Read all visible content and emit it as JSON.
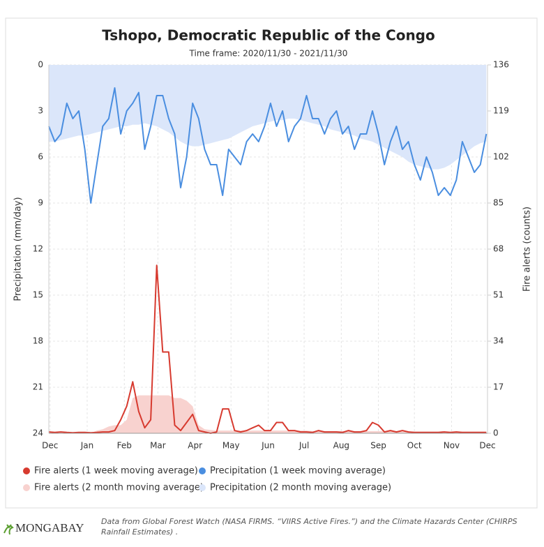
{
  "chart_data": {
    "type": "line",
    "title": "Tshopo, Democratic Republic of the Congo",
    "subtitle": "Time frame: 2020/11/30 - 2021/11/30",
    "y_label": "Precipitation (mm/day)",
    "y2_label": "Fire alerts (counts)",
    "x": [
      0,
      5,
      10,
      15,
      20,
      25,
      30,
      35,
      40,
      45,
      50,
      55,
      60,
      65,
      70,
      75,
      80,
      85,
      90,
      95,
      100,
      105,
      110,
      115,
      120,
      125,
      130,
      135,
      140,
      145,
      150,
      155,
      160,
      165,
      170,
      175,
      180,
      185,
      190,
      195,
      200,
      205,
      210,
      215,
      220,
      225,
      230,
      235,
      240,
      245,
      250,
      255,
      260,
      265,
      270,
      275,
      280,
      285,
      290,
      295,
      300,
      305,
      310,
      315,
      320,
      325,
      330,
      335,
      340,
      345,
      350,
      355,
      360,
      365
    ],
    "xlim": [
      0,
      366
    ],
    "xticks": [
      {
        "value": 1,
        "label": "Dec"
      },
      {
        "value": 32,
        "label": "Jan"
      },
      {
        "value": 63,
        "label": "Feb"
      },
      {
        "value": 91,
        "label": "Mar"
      },
      {
        "value": 122,
        "label": "Apr"
      },
      {
        "value": 152,
        "label": "May"
      },
      {
        "value": 183,
        "label": "Jun"
      },
      {
        "value": 213,
        "label": "Jul"
      },
      {
        "value": 244,
        "label": "Aug"
      },
      {
        "value": 275,
        "label": "Sep"
      },
      {
        "value": 305,
        "label": "Oct"
      },
      {
        "value": 336,
        "label": "Nov"
      },
      {
        "value": 366,
        "label": "Dec"
      }
    ],
    "ylim": [
      0,
      24
    ],
    "y_reversed": true,
    "yticks": [
      0,
      3,
      6,
      9,
      12,
      15,
      18,
      21,
      24
    ],
    "y2lim": [
      0,
      136
    ],
    "y2ticks": [
      0,
      17,
      34,
      51,
      68,
      85,
      102,
      119,
      136
    ],
    "grid": true,
    "series": [
      {
        "name": "Fire alerts (1 week moving average)",
        "color": "#d73a2f",
        "axis": "y2",
        "fill": false,
        "values": [
          0.5,
          0.3,
          0.5,
          0.3,
          0.2,
          0.3,
          0.3,
          0.2,
          0.3,
          0.5,
          0.5,
          1,
          5,
          10,
          19,
          8,
          2,
          5,
          62,
          30,
          30,
          3,
          1,
          4,
          7,
          1,
          0.5,
          0,
          0.5,
          9,
          9,
          1,
          0.5,
          1,
          2,
          3,
          1,
          1,
          4,
          4,
          1,
          1,
          0.5,
          0.5,
          0.3,
          1,
          0.5,
          0.5,
          0.5,
          0.3,
          1,
          0.5,
          0.5,
          1,
          4,
          3,
          0.5,
          1,
          0.5,
          1,
          0.5,
          0.3,
          0.3,
          0.3,
          0.3,
          0.3,
          0.5,
          0.3,
          0.5,
          0.3,
          0.3,
          0.3,
          0.3,
          0.3
        ]
      },
      {
        "name": "Precipitation (1 week moving average)",
        "color": "#4a8ee0",
        "fill": false,
        "values": [
          4.0,
          5.0,
          4.5,
          2.5,
          3.5,
          3.0,
          5.5,
          9.0,
          6.5,
          4.0,
          3.5,
          1.5,
          4.5,
          3.0,
          2.5,
          1.8,
          5.5,
          4.0,
          2.0,
          2.0,
          3.5,
          4.5,
          8.0,
          6.0,
          2.5,
          3.5,
          5.5,
          6.5,
          6.5,
          8.5,
          5.5,
          6.0,
          6.5,
          5.0,
          4.5,
          5.0,
          4.0,
          2.5,
          4.0,
          3.0,
          5.0,
          4.0,
          3.5,
          2.0,
          3.5,
          3.5,
          4.5,
          3.5,
          3.0,
          4.5,
          4.0,
          5.5,
          4.5,
          4.5,
          3.0,
          4.5,
          6.5,
          5.0,
          4.0,
          5.5,
          5.0,
          6.5,
          7.5,
          6.0,
          7.0,
          8.5,
          8.0,
          8.5,
          7.5,
          5.0,
          6.0,
          7.0,
          6.5,
          4.5
        ]
      },
      {
        "name": "Fire alerts (2 month moving average)",
        "color": "#f8d2cf",
        "axis": "y2",
        "fill": true,
        "values": [
          0,
          0,
          0,
          0,
          0,
          0,
          0,
          0,
          1,
          1.5,
          2.5,
          3,
          3,
          5,
          13,
          14,
          14,
          14,
          14,
          14,
          14,
          13,
          13,
          12,
          10,
          3,
          1.5,
          1.2,
          1,
          1,
          1,
          1,
          1,
          1,
          1,
          1,
          1,
          1,
          1,
          1,
          1,
          1,
          1,
          1,
          0.8,
          0.8,
          0.8,
          0.8,
          0.8,
          0.8,
          0.8,
          0.8,
          0.8,
          0.8,
          0.8,
          0.8,
          0.8,
          0.8,
          0.6,
          0.6,
          0.6,
          0.6,
          0.6,
          0.6,
          0.6,
          0.6,
          0.6,
          0.6,
          0.6,
          0.6,
          0.6,
          0.6,
          0.6,
          0.6
        ]
      },
      {
        "name": "Precipitation (2 month moving average)",
        "color": "#dbe6fa",
        "fill": true,
        "values": [
          5.0,
          5.0,
          4.9,
          4.8,
          4.7,
          4.6,
          4.6,
          4.5,
          4.4,
          4.3,
          4.2,
          4.1,
          4.0,
          4.0,
          3.9,
          3.9,
          3.8,
          3.9,
          4.0,
          4.2,
          4.4,
          4.7,
          5.0,
          5.2,
          5.3,
          5.3,
          5.2,
          5.1,
          5.0,
          4.9,
          4.8,
          4.6,
          4.4,
          4.2,
          4.0,
          3.9,
          3.8,
          3.7,
          3.6,
          3.6,
          3.5,
          3.5,
          3.6,
          3.7,
          3.8,
          3.9,
          4.0,
          4.2,
          4.3,
          4.4,
          4.5,
          4.6,
          4.8,
          4.9,
          5.0,
          5.2,
          5.4,
          5.6,
          5.8,
          6.0,
          6.3,
          6.5,
          6.6,
          6.7,
          6.8,
          6.8,
          6.7,
          6.5,
          6.2,
          5.9,
          5.6,
          5.3,
          5.1,
          5.0
        ]
      }
    ],
    "draw_order": [
      3,
      2,
      1,
      0
    ],
    "footer": {
      "brand": "MONGABAY",
      "note": "Data from Global Forest Watch (NASA FIRMS. “VIIRS Active Fires.”) and the Climate Hazards Center (CHIRPS Rainfall Estimates) ."
    }
  }
}
